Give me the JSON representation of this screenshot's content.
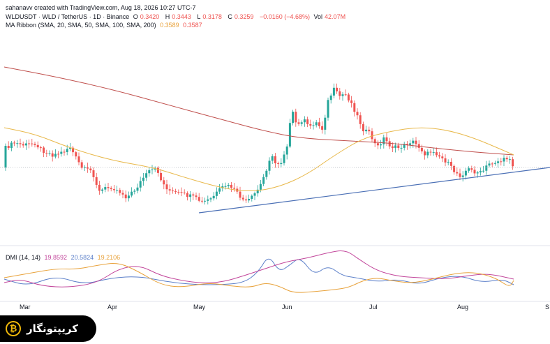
{
  "header": {
    "attribution": "sahanavv created with TradingView.com, Aug 18, 2026 10:27 UTC-7",
    "symbol_line": "WLDUSDT · WLD / TetherUS · 1D · Binance",
    "open_label": "O",
    "open_value": "0.3420",
    "high_label": "H",
    "high_value": "0.3443",
    "low_label": "L",
    "low_value": "0.3178",
    "close_label": "C",
    "close_value": "0.3259",
    "change": "−0.0160 (−4.68%)",
    "vol_label": "Vol",
    "vol_value": "42.07M",
    "ma_label": "MA Ribbon (SMA, 20, SMA, 50, SMA, 100, SMA, 200)",
    "ma_value_1": "0.3589",
    "ma_value_2": "0.3587"
  },
  "dmi": {
    "label": "DMI (14, 14)",
    "plus_di": "19.8592",
    "minus_di": "20.5824",
    "adx": "19.2106"
  },
  "colors": {
    "up": "#26a69a",
    "down": "#ef5350",
    "sma_fast": "#e8b84a",
    "sma_slow": "#c0504d",
    "trendline": "#4a6fb5",
    "plus_di": "#5b7fc9",
    "minus_di": "#c2469b",
    "adx": "#e8a23b"
  },
  "x_axis": {
    "months": [
      "Mar",
      "Apr",
      "May",
      "Jun",
      "Jul",
      "Aug",
      "S"
    ]
  },
  "logo": {
    "text": "کریپتونگار",
    "mark": "₿"
  }
}
